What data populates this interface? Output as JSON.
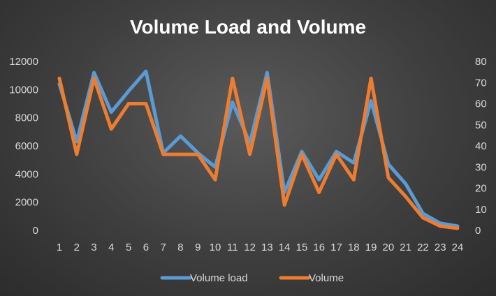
{
  "chart_data": {
    "type": "line",
    "title": "Volume Load and Volume",
    "xlabel": "",
    "ylabel": "",
    "x": [
      1,
      2,
      3,
      4,
      5,
      6,
      7,
      8,
      9,
      10,
      11,
      12,
      13,
      14,
      15,
      16,
      17,
      18,
      19,
      20,
      21,
      22,
      23,
      24
    ],
    "x_tick_labels": [
      "1",
      "2",
      "3",
      "4",
      "5",
      "6",
      "7",
      "8",
      "9",
      "10",
      "11",
      "12",
      "13",
      "14",
      "15",
      "16",
      "17",
      "18",
      "19",
      "20",
      "21",
      "22",
      "23",
      "24"
    ],
    "y_left": {
      "lim": [
        0,
        12000
      ],
      "ticks": [
        0,
        2000,
        4000,
        6000,
        8000,
        10000,
        12000
      ]
    },
    "y_right": {
      "lim": [
        0,
        80
      ],
      "ticks": [
        0,
        10,
        20,
        30,
        40,
        50,
        60,
        70,
        80
      ]
    },
    "series": [
      {
        "name": "Volume load",
        "axis": "left",
        "color": "#5b9bd5",
        "values": [
          10400,
          6300,
          11200,
          8400,
          9900,
          11300,
          5500,
          6700,
          5500,
          4500,
          9100,
          6200,
          11200,
          2700,
          5600,
          3600,
          5600,
          4800,
          9200,
          4700,
          3300,
          1200,
          500,
          300
        ]
      },
      {
        "name": "Volume",
        "axis": "right",
        "color": "#ed7d31",
        "values": [
          72,
          36,
          72,
          48,
          60,
          60,
          36,
          36,
          36,
          24,
          72,
          36,
          72,
          12,
          36,
          18,
          36,
          24,
          72,
          25,
          16,
          6,
          2,
          1
        ]
      }
    ],
    "grid": false,
    "legend": "bottom"
  }
}
